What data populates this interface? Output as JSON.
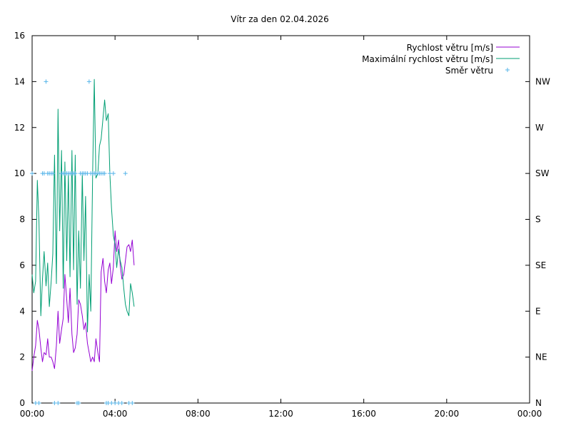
{
  "chart_data": {
    "type": "line",
    "title": "Vítr za den 02.04.2026",
    "x_ticks": [
      "00:00",
      "04:00",
      "08:00",
      "12:00",
      "16:00",
      "20:00",
      "00:00"
    ],
    "y_ticks_left": [
      "0",
      "2",
      "4",
      "6",
      "8",
      "10",
      "12",
      "14",
      "16"
    ],
    "y_ticks_right": [
      "N",
      "NE",
      "E",
      "SE",
      "S",
      "SW",
      "W",
      "NW"
    ],
    "xlim_hours": [
      0,
      24
    ],
    "ylim": [
      0,
      16
    ],
    "grid": false,
    "legend_position": "top-right",
    "series": [
      {
        "name": "Rychlost větru [m/s]",
        "color": "#9400d3",
        "axis": "left",
        "style": "line",
        "x": [
          0.0,
          0.08,
          0.17,
          0.25,
          0.33,
          0.42,
          0.5,
          0.58,
          0.67,
          0.75,
          0.83,
          0.92,
          1.0,
          1.08,
          1.17,
          1.25,
          1.33,
          1.42,
          1.5,
          1.58,
          1.67,
          1.75,
          1.83,
          1.92,
          2.0,
          2.08,
          2.17,
          2.25,
          2.33,
          2.42,
          2.5,
          2.58,
          2.67,
          2.75,
          2.83,
          2.92,
          3.0,
          3.08,
          3.17,
          3.25,
          3.33,
          3.42,
          3.5,
          3.58,
          3.67,
          3.75,
          3.83,
          3.92,
          4.0,
          4.08,
          4.17,
          4.25,
          4.33,
          4.42,
          4.5,
          4.58,
          4.67,
          4.75,
          4.83,
          4.92
        ],
        "values": [
          1.4,
          2.0,
          2.5,
          3.6,
          3.2,
          2.4,
          1.8,
          2.2,
          2.1,
          2.8,
          2.0,
          2.0,
          1.8,
          1.5,
          2.5,
          4.0,
          2.6,
          3.2,
          3.7,
          5.6,
          4.5,
          3.5,
          5.0,
          3.0,
          2.2,
          2.4,
          3.0,
          4.5,
          4.3,
          3.8,
          3.2,
          3.5,
          2.6,
          2.2,
          1.8,
          2.0,
          1.8,
          2.8,
          2.2,
          1.8,
          5.7,
          6.3,
          5.3,
          4.8,
          5.8,
          6.1,
          5.2,
          5.9,
          7.5,
          6.6,
          7.1,
          6.0,
          5.4,
          5.6,
          6.2,
          6.8,
          6.9,
          6.6,
          7.1,
          6.0
        ]
      },
      {
        "name": "Maximální rychlost větru [m/s]",
        "color": "#009e73",
        "axis": "left",
        "style": "line",
        "x": [
          0.0,
          0.08,
          0.17,
          0.25,
          0.33,
          0.42,
          0.5,
          0.58,
          0.67,
          0.75,
          0.83,
          0.92,
          1.0,
          1.08,
          1.17,
          1.25,
          1.33,
          1.42,
          1.5,
          1.58,
          1.67,
          1.75,
          1.83,
          1.92,
          2.0,
          2.08,
          2.17,
          2.25,
          2.33,
          2.42,
          2.5,
          2.58,
          2.67,
          2.75,
          2.83,
          2.92,
          3.0,
          3.08,
          3.17,
          3.25,
          3.33,
          3.42,
          3.5,
          3.58,
          3.67,
          3.75,
          3.83,
          3.92,
          4.0,
          4.08,
          4.17,
          4.25,
          4.33,
          4.42,
          4.5,
          4.58,
          4.67,
          4.75,
          4.83,
          4.92
        ],
        "values": [
          5.6,
          4.8,
          5.3,
          9.7,
          7.9,
          3.8,
          5.4,
          6.6,
          5.1,
          6.1,
          4.2,
          5.3,
          6.5,
          10.8,
          5.2,
          12.8,
          7.5,
          11.0,
          5.0,
          10.5,
          6.2,
          10.0,
          5.5,
          11.0,
          5.8,
          10.8,
          4.3,
          7.5,
          5.0,
          10.0,
          6.2,
          9.0,
          3.1,
          5.6,
          4.0,
          10.0,
          14.1,
          9.8,
          10.0,
          11.2,
          11.5,
          12.4,
          13.2,
          12.3,
          12.6,
          10.0,
          8.5,
          7.3,
          6.9,
          5.9,
          6.7,
          6.2,
          5.9,
          5.0,
          4.3,
          4.0,
          3.8,
          5.2,
          4.8,
          4.2
        ]
      },
      {
        "name": "Směr větru",
        "color": "#56b4e9",
        "axis": "right",
        "style": "points",
        "x": [
          0.0,
          0.17,
          0.33,
          0.5,
          0.58,
          0.67,
          0.75,
          0.83,
          0.92,
          1.0,
          1.08,
          1.25,
          1.42,
          1.5,
          1.58,
          1.67,
          1.75,
          1.83,
          1.92,
          2.0,
          2.08,
          2.17,
          2.25,
          2.33,
          2.42,
          2.5,
          2.58,
          2.67,
          2.75,
          2.83,
          2.92,
          3.0,
          3.08,
          3.17,
          3.25,
          3.33,
          3.42,
          3.5,
          3.58,
          3.67,
          3.75,
          3.83,
          3.92,
          4.0,
          4.17,
          4.33,
          4.5,
          4.67,
          4.83
        ],
        "values": [
          "SW",
          "N",
          "N",
          "SW",
          "SW",
          "NW",
          "SW",
          "SW",
          "SW",
          "SW",
          "N",
          "N",
          "SW",
          "SW",
          "SW",
          "SW",
          "SW",
          "SW",
          "SW",
          "SW",
          "SW",
          "N",
          "N",
          "SW",
          "SW",
          "SW",
          "SW",
          "SW",
          "NW",
          "SW",
          "SW",
          "SW",
          "SW",
          "SW",
          "SW",
          "SW",
          "SW",
          "SW",
          "N",
          "N",
          "SW",
          "N",
          "SW",
          "N",
          "N",
          "N",
          "SW",
          "N",
          "N"
        ]
      }
    ]
  }
}
